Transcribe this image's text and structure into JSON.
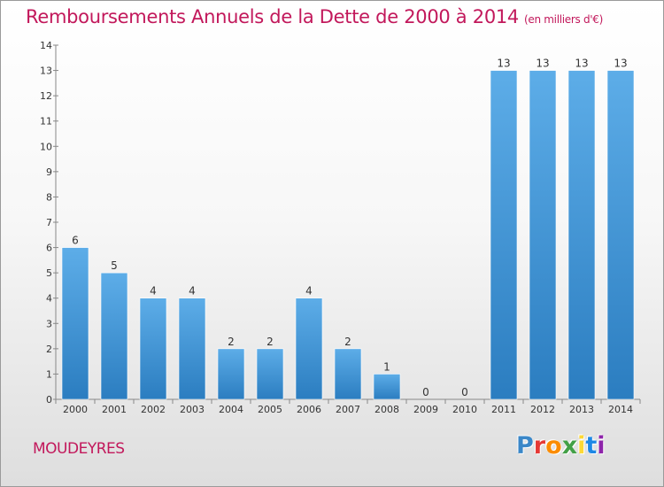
{
  "header": {
    "title": "Remboursements Annuels de la Dette de 2000 à 2014",
    "subtitle": "(en milliers d'€)"
  },
  "footer": {
    "commune": "MOUDEYRES",
    "logo": "Proxiti",
    "logo_colors": [
      "#3a87c8",
      "#e53935",
      "#fb8c00",
      "#43a047",
      "#fdd835",
      "#1e88e5",
      "#8e24aa"
    ]
  },
  "colors": {
    "bar_light": "#5dade8",
    "bar_dark": "#2b7dc0",
    "title": "#c2185b",
    "axis": "#555555"
  },
  "chart_data": {
    "type": "bar",
    "title": "Remboursements Annuels de la Dette de 2000 à 2014",
    "subtitle": "(en milliers d'€)",
    "categories": [
      "2000",
      "2001",
      "2002",
      "2003",
      "2004",
      "2005",
      "2006",
      "2007",
      "2008",
      "2009",
      "2010",
      "2011",
      "2012",
      "2013",
      "2014"
    ],
    "values": [
      6,
      5,
      4,
      4,
      2,
      2,
      4,
      2,
      1,
      0,
      0,
      13,
      13,
      13,
      13
    ],
    "data_labels": [
      "6",
      "5",
      "4",
      "4",
      "2",
      "2",
      "4",
      "2",
      "1",
      "0",
      "0",
      "13",
      "13",
      "13",
      "13"
    ],
    "yticks": [
      "0",
      "1",
      "2",
      "3",
      "4",
      "5",
      "6",
      "7",
      "8",
      "9",
      "10",
      "11",
      "12",
      "13",
      "14"
    ],
    "ylim": [
      0,
      14
    ],
    "xlabel": "",
    "ylabel": "",
    "grid": false,
    "legend": "none"
  }
}
